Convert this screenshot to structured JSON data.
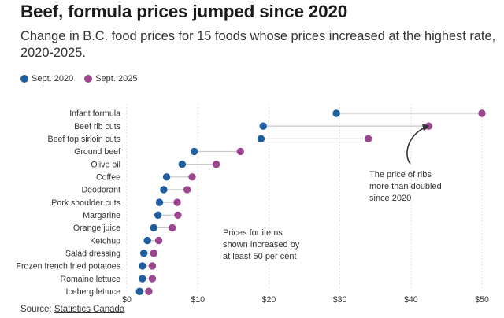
{
  "title": "Beef, formula prices jumped since 2020",
  "subtitle": "Change in B.C. food prices for 15 foods whose prices increased at the highest rate, 2020-2025.",
  "colors": {
    "sept2020": "#1f5fa0",
    "sept2025": "#9c4690",
    "connector": "#c8c8c8",
    "grid": "#e2e2e2"
  },
  "legend": [
    {
      "label": "Sept. 2020",
      "color": "#1f5fa0"
    },
    {
      "label": "Sept. 2025",
      "color": "#9c4690"
    }
  ],
  "chart_data": {
    "type": "dot-plot",
    "categories": [
      "Infant formula",
      "Beef rib cuts",
      "Beef top sirloin cuts",
      "Ground beef",
      "Olive oil",
      "Coffee",
      "Deodorant",
      "Pork shoulder cuts",
      "Margarine",
      "Orange juice",
      "Ketchup",
      "Salad dressing",
      "Frozen french fried potatoes",
      "Romaine lettuce",
      "Iceberg lettuce"
    ],
    "series": [
      {
        "name": "Sept. 2020",
        "values": [
          29.5,
          19.2,
          18.9,
          9.5,
          7.8,
          5.6,
          5.2,
          4.6,
          4.4,
          3.8,
          2.9,
          2.4,
          2.2,
          2.2,
          1.8
        ]
      },
      {
        "name": "Sept. 2025",
        "values": [
          50.0,
          42.5,
          34.0,
          16.0,
          12.6,
          9.2,
          8.5,
          7.1,
          7.2,
          6.4,
          4.5,
          3.8,
          3.6,
          3.6,
          3.1
        ]
      }
    ],
    "xlim": [
      0,
      50
    ],
    "x_ticks": [
      "$0",
      "$10",
      "$20",
      "$30",
      "$40",
      "$50"
    ],
    "annotations": [
      {
        "lines": [
          "The price of ribs",
          "more than doubled",
          "since 2020"
        ]
      },
      {
        "lines": [
          "Prices for items",
          "shown increased by",
          "at least 50 per cent"
        ]
      }
    ]
  },
  "source": {
    "prefix": "Source: ",
    "name": "Statistics Canada"
  }
}
